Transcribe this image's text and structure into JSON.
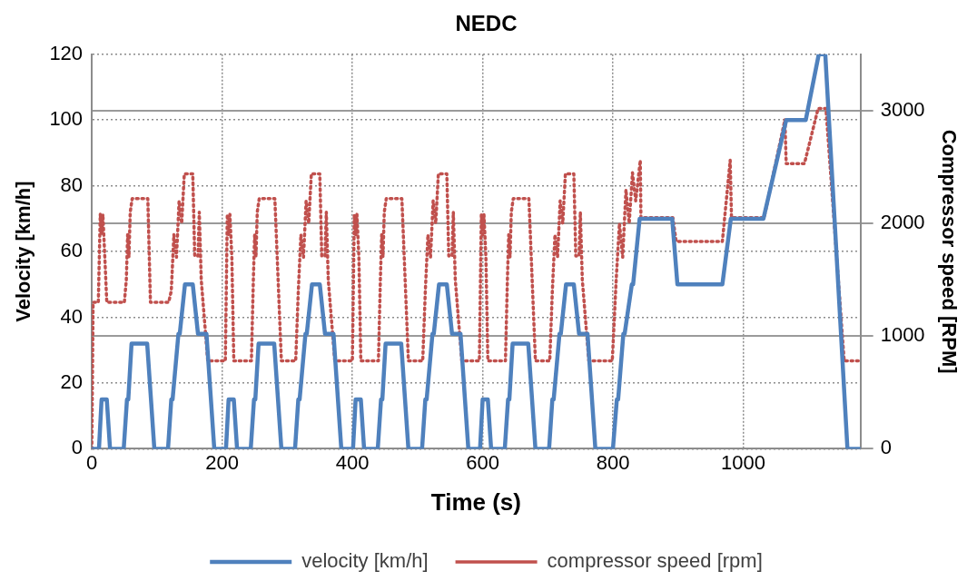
{
  "chart_data": {
    "type": "line",
    "title": "NEDC",
    "xlabel": "Time (s)",
    "ylabel": "Velocity [km/h]",
    "y2label": "Compressor speed [RPM]",
    "xlim": [
      0,
      1180
    ],
    "xticks": [
      0,
      200,
      400,
      600,
      800,
      1000
    ],
    "ylim": [
      0,
      120
    ],
    "yticks": [
      0,
      20,
      40,
      60,
      80,
      100,
      120
    ],
    "y2lim": [
      0,
      3500
    ],
    "y2ticks": [
      0,
      1000,
      2000,
      3000
    ],
    "grid": true,
    "legend": "bottom",
    "marker": "none",
    "series": [
      {
        "name": "velocity [km/h]",
        "color": "#4f81bd",
        "line_style": "solid",
        "x": [
          0,
          11,
          15,
          23,
          28,
          49,
          54,
          56,
          61,
          85,
          96,
          117,
          122,
          124,
          133,
          135,
          143,
          155,
          163,
          176,
          188,
          195,
          206,
          210,
          218,
          223,
          244,
          249,
          251,
          256,
          280,
          291,
          312,
          317,
          319,
          328,
          330,
          338,
          350,
          358,
          371,
          383,
          390,
          401,
          405,
          413,
          418,
          439,
          444,
          446,
          451,
          475,
          486,
          507,
          512,
          514,
          523,
          525,
          533,
          545,
          553,
          566,
          578,
          585,
          596,
          600,
          608,
          613,
          634,
          639,
          641,
          646,
          670,
          681,
          702,
          707,
          709,
          718,
          720,
          728,
          740,
          748,
          761,
          773,
          800,
          806,
          808,
          816,
          818,
          829,
          831,
          841,
          891,
          899,
          968,
          981,
          1031,
          1066,
          1096,
          1116,
          1126,
          1160,
          1180
        ],
        "values": [
          0,
          0,
          15,
          15,
          0,
          0,
          15,
          15,
          32,
          32,
          0,
          0,
          15,
          15,
          35,
          35,
          50,
          50,
          35,
          35,
          0,
          0,
          0,
          15,
          15,
          0,
          0,
          15,
          15,
          32,
          32,
          0,
          0,
          15,
          15,
          35,
          35,
          50,
          50,
          35,
          35,
          0,
          0,
          0,
          15,
          15,
          0,
          0,
          15,
          15,
          32,
          32,
          0,
          0,
          15,
          15,
          35,
          35,
          50,
          50,
          35,
          35,
          0,
          0,
          0,
          15,
          15,
          0,
          0,
          15,
          15,
          32,
          32,
          0,
          0,
          15,
          15,
          35,
          35,
          50,
          50,
          35,
          35,
          0,
          0,
          15,
          15,
          35,
          35,
          50,
          50,
          70,
          70,
          50,
          50,
          70,
          70,
          100,
          100,
          120,
          120,
          0,
          0
        ]
      },
      {
        "name": "compressor speed [rpm]",
        "color": "#c0504d",
        "axis": "y2",
        "line_style": "dotted",
        "x": [
          0,
          2,
          10,
          13,
          15,
          17,
          20,
          23,
          50,
          53,
          55,
          57,
          59,
          62,
          86,
          90,
          118,
          122,
          126,
          130,
          134,
          138,
          142,
          155,
          158,
          163,
          165,
          168,
          178,
          205,
          208,
          210,
          212,
          215,
          218,
          245,
          248,
          250,
          252,
          254,
          257,
          281,
          291,
          313,
          317,
          321,
          325,
          329,
          333,
          337,
          350,
          353,
          358,
          360,
          363,
          373,
          400,
          403,
          405,
          407,
          410,
          413,
          440,
          443,
          445,
          447,
          449,
          452,
          476,
          486,
          508,
          512,
          516,
          520,
          524,
          528,
          532,
          545,
          548,
          553,
          555,
          558,
          568,
          595,
          598,
          600,
          602,
          605,
          608,
          635,
          638,
          640,
          642,
          644,
          647,
          671,
          681,
          703,
          707,
          711,
          715,
          719,
          723,
          727,
          740,
          743,
          748,
          750,
          753,
          763,
          799,
          805,
          810,
          815,
          820,
          825,
          830,
          835,
          842,
          843,
          892,
          897,
          968,
          974,
          980,
          982,
          1032,
          1064,
          1066,
          1094,
          1115,
          1127,
          1155,
          1180
        ],
        "values": [
          0,
          1300,
          1300,
          2080,
          1900,
          2080,
          1700,
          1300,
          1300,
          1500,
          1900,
          1700,
          2100,
          2220,
          2220,
          1300,
          1300,
          1400,
          1900,
          1700,
          2200,
          2000,
          2440,
          2440,
          1710,
          1710,
          2100,
          1500,
          780,
          780,
          2080,
          1900,
          2080,
          1700,
          780,
          780,
          1500,
          1900,
          1700,
          2100,
          2220,
          2220,
          780,
          780,
          1400,
          1900,
          1700,
          2200,
          2000,
          2440,
          2440,
          1710,
          1710,
          2100,
          1500,
          780,
          780,
          2080,
          1900,
          2080,
          1700,
          780,
          780,
          1500,
          1900,
          1700,
          2100,
          2220,
          2220,
          780,
          780,
          1400,
          1900,
          1700,
          2200,
          2000,
          2440,
          2440,
          1710,
          1710,
          2100,
          1500,
          780,
          780,
          2080,
          1900,
          2080,
          1700,
          780,
          780,
          1500,
          1900,
          1700,
          2100,
          2220,
          2220,
          780,
          780,
          1400,
          1900,
          1700,
          2200,
          2000,
          2440,
          2440,
          1710,
          1710,
          2100,
          1500,
          780,
          780,
          1500,
          2000,
          1700,
          2300,
          2000,
          2450,
          2200,
          2560,
          2050,
          2050,
          1840,
          1840,
          2200,
          2560,
          2050,
          2050,
          2920,
          2530,
          2530,
          3020,
          3020,
          780,
          780
        ]
      }
    ]
  }
}
